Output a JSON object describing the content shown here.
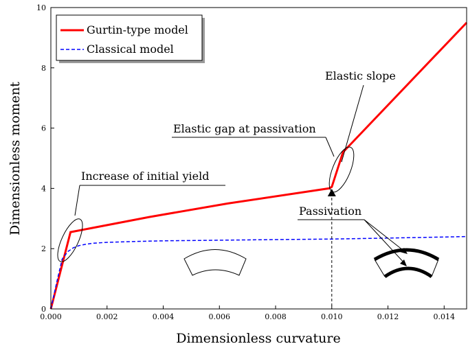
{
  "chart_data": {
    "type": "line",
    "xlabel": "Dimensionless curvature",
    "ylabel": "Dimensionless moment",
    "xlim": [
      0,
      0.0148
    ],
    "ylim": [
      0,
      10
    ],
    "xticks": [
      "0.000",
      "0.002",
      "0.004",
      "0.006",
      "0.008",
      "0.010",
      "0.012",
      "0.014"
    ],
    "yticks": [
      "0",
      "2",
      "4",
      "6",
      "8",
      "10"
    ],
    "xtick_values": [
      0,
      0.002,
      0.004,
      0.006,
      0.008,
      0.01,
      0.012,
      0.014
    ],
    "ytick_values": [
      0,
      2,
      4,
      6,
      8,
      10
    ],
    "legend_position": "top-left",
    "grid": false,
    "series": [
      {
        "name": "Gurtin-type model",
        "color": "#ff0000",
        "style": "solid",
        "x": [
          0,
          0.0007,
          0.0035,
          0.0063,
          0.0099,
          0.01,
          0.0104,
          0.0148
        ],
        "y": [
          0,
          2.55,
          3.05,
          3.5,
          4.0,
          4.05,
          5.2,
          9.5
        ]
      },
      {
        "name": "Classical model",
        "color": "#0000ff",
        "style": "dashed",
        "x": [
          0,
          0.0002,
          0.0004,
          0.0006,
          0.0008,
          0.001,
          0.0012,
          0.0015,
          0.002,
          0.003,
          0.004,
          0.006,
          0.008,
          0.01,
          0.012,
          0.0148
        ],
        "y": [
          0,
          0.85,
          1.65,
          1.9,
          2.03,
          2.1,
          2.14,
          2.18,
          2.21,
          2.24,
          2.26,
          2.28,
          2.3,
          2.32,
          2.35,
          2.4
        ]
      }
    ],
    "annotations": {
      "initial_yield": "Increase of initial yield",
      "elastic_gap": "Elastic gap at passivation",
      "elastic_slope": "Elastic slope",
      "passivation": "Passivation"
    },
    "passivation_point": {
      "x": 0.01,
      "y": 3.85
    }
  }
}
